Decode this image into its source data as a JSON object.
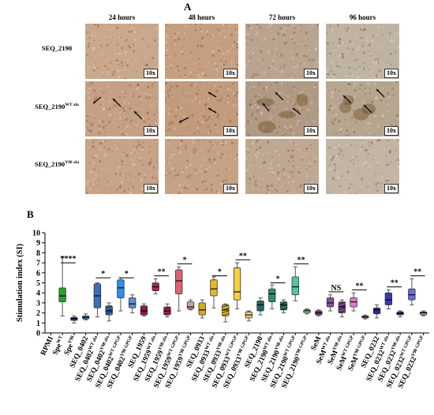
{
  "panel_a": {
    "label": "A",
    "columns": [
      "24 hours",
      "48 hours",
      "72 hours",
      "96 hours"
    ],
    "rows": [
      {
        "label": "SEQ_2190",
        "sup": ""
      },
      {
        "label": "SEQ_2190",
        "sup": "WT ala"
      },
      {
        "label": "SEQ_2190",
        "sup": "Y98 ala"
      }
    ],
    "magnification": "10x",
    "arrow_color": "#111111"
  },
  "panel_b": {
    "label": "B"
  },
  "chart_data": {
    "type": "box",
    "ylabel": "Stimulation index (SI)",
    "ylim": [
      0,
      10
    ],
    "yticks": [
      0,
      1,
      2,
      3,
      4,
      5,
      6,
      7,
      8,
      9,
      10
    ],
    "categories": [
      {
        "name": "RPMI",
        "sup": "",
        "color": "",
        "box": null
      },
      {
        "name": "Spe",
        "sup": "WT",
        "color": "#2ca02c",
        "box": {
          "min": 1.7,
          "q1": 3.1,
          "median": 3.7,
          "q3": 4.5,
          "max": 7.6
        }
      },
      {
        "name": "Spe",
        "sup": "Y98",
        "color": "#1f2f8a",
        "box": {
          "min": 1.0,
          "q1": 1.25,
          "median": 1.45,
          "q3": 1.55,
          "max": 1.7
        }
      },
      {
        "name": "SEQ_0402",
        "sup": "",
        "color": "#3b6fb6",
        "box": {
          "min": 1.3,
          "q1": 1.4,
          "median": 1.55,
          "q3": 1.7,
          "max": 1.9
        }
      },
      {
        "name": "SEQ_0402",
        "sup": "WT ala",
        "color": "#3b6fb6",
        "box": {
          "min": 1.6,
          "q1": 2.5,
          "median": 3.7,
          "q3": 4.9,
          "max": 5.0
        }
      },
      {
        "name": "SEQ_0402",
        "sup": "Y98 ala",
        "color": "#3b6fb6",
        "box": {
          "min": 1.2,
          "q1": 1.8,
          "median": 2.2,
          "q3": 2.7,
          "max": 3.0
        }
      },
      {
        "name": "SEQ_0402",
        "sup": "WT GPGP",
        "color": "#2f8fe8",
        "box": {
          "min": 2.2,
          "q1": 3.5,
          "median": 4.5,
          "q3": 5.3,
          "max": 5.5
        }
      },
      {
        "name": "SEQ_0402",
        "sup": "Y98 GPGP",
        "color": "#5b8fd6",
        "box": {
          "min": 2.0,
          "q1": 2.5,
          "median": 2.9,
          "q3": 3.5,
          "max": 3.8
        }
      },
      {
        "name": "SEQ_1959",
        "sup": "",
        "color": "#8a1f3a",
        "box": {
          "min": 1.7,
          "q1": 1.8,
          "median": 2.2,
          "q3": 2.7,
          "max": 2.9
        }
      },
      {
        "name": "SEQ_1959",
        "sup": "WT ala",
        "color": "#b0264b",
        "box": {
          "min": 3.9,
          "q1": 4.2,
          "median": 4.6,
          "q3": 5.0,
          "max": 5.4
        }
      },
      {
        "name": "SEQ_1959",
        "sup": "Y98 ala",
        "color": "#b0264b",
        "box": {
          "min": 1.6,
          "q1": 1.8,
          "median": 2.2,
          "q3": 2.6,
          "max": 2.9
        }
      },
      {
        "name": "SEQ_1959",
        "sup": "WT GPGP",
        "color": "#e06070",
        "box": {
          "min": 2.2,
          "q1": 3.9,
          "median": 5.2,
          "q3": 6.3,
          "max": 6.6
        }
      },
      {
        "name": "SEQ_1959",
        "sup": "Y98 GPGP",
        "color": "#c9a0a5",
        "box": {
          "min": 2.3,
          "q1": 2.4,
          "median": 2.6,
          "q3": 3.1,
          "max": 3.3
        }
      },
      {
        "name": "SEQ_0933",
        "sup": "",
        "color": "#d6a820",
        "box": {
          "min": 1.5,
          "q1": 1.8,
          "median": 2.3,
          "q3": 3.0,
          "max": 3.3
        }
      },
      {
        "name": "SEQ_0933",
        "sup": "WT ala",
        "color": "#e4b820",
        "box": {
          "min": 2.5,
          "q1": 3.7,
          "median": 4.4,
          "q3": 5.3,
          "max": 5.6
        }
      },
      {
        "name": "SEQ_0933",
        "sup": "Y98 ala",
        "color": "#e4b820",
        "box": {
          "min": 1.1,
          "q1": 1.7,
          "median": 2.3,
          "q3": 2.8,
          "max": 2.9
        }
      },
      {
        "name": "SEQ_0933",
        "sup": "WT GPGP",
        "color": "#f2d040",
        "box": {
          "min": 2.4,
          "q1": 3.3,
          "median": 4.1,
          "q3": 6.5,
          "max": 7.0
        }
      },
      {
        "name": "SEQ_0933",
        "sup": "Y98 GPGP",
        "color": "#ecd27a",
        "box": {
          "min": 1.2,
          "q1": 1.5,
          "median": 1.8,
          "q3": 2.1,
          "max": 2.2
        }
      },
      {
        "name": "SEQ_2190",
        "sup": "",
        "color": "#1f6a6a",
        "box": {
          "min": 1.8,
          "q1": 2.2,
          "median": 2.8,
          "q3": 3.2,
          "max": 3.5
        }
      },
      {
        "name": "SEQ_2190",
        "sup": "WT ala",
        "color": "#2e8b6e",
        "box": {
          "min": 2.4,
          "q1": 3.1,
          "median": 3.9,
          "q3": 4.4,
          "max": 4.8
        }
      },
      {
        "name": "SEQ_2190",
        "sup": "Y98 ala",
        "color": "#2e8b6e",
        "box": {
          "min": 2.0,
          "q1": 2.3,
          "median": 2.8,
          "q3": 3.1,
          "max": 3.3
        }
      },
      {
        "name": "SEQ_2190",
        "sup": "WT GPGP",
        "color": "#52c79a",
        "box": {
          "min": 3.2,
          "q1": 3.8,
          "median": 4.6,
          "q3": 5.6,
          "max": 6.6
        }
      },
      {
        "name": "SEQ_2190",
        "sup": "Y98 GPGP",
        "color": "#9fd9b8",
        "box": {
          "min": 1.9,
          "q1": 2.0,
          "median": 2.2,
          "q3": 2.3,
          "max": 2.4
        }
      },
      {
        "name": "SeM",
        "sup": "",
        "color": "#6a3d7a",
        "box": {
          "min": 1.7,
          "q1": 1.8,
          "median": 2.0,
          "q3": 2.2,
          "max": 2.3
        }
      },
      {
        "name": "SeM",
        "sup": "WT ala",
        "color": "#8a4f9e",
        "box": {
          "min": 2.2,
          "q1": 2.6,
          "median": 3.0,
          "q3": 3.5,
          "max": 3.8
        }
      },
      {
        "name": "SeM",
        "sup": "Y98 ala",
        "color": "#8a4f9e",
        "box": {
          "min": 1.6,
          "q1": 2.0,
          "median": 2.6,
          "q3": 3.1,
          "max": 3.3
        }
      },
      {
        "name": "SeM",
        "sup": "WT GPGP",
        "color": "#e07ad0",
        "box": {
          "min": 2.2,
          "q1": 2.6,
          "median": 3.1,
          "q3": 3.5,
          "max": 4.0
        }
      },
      {
        "name": "SeM",
        "sup": "Y98 GPGP",
        "color": "#d8a0d0",
        "box": {
          "min": 1.4,
          "q1": 1.5,
          "median": 1.6,
          "q3": 1.7,
          "max": 1.8
        }
      },
      {
        "name": "SEQ_0232",
        "sup": "",
        "color": "#2a2a8a",
        "box": {
          "min": 1.5,
          "q1": 1.9,
          "median": 2.3,
          "q3": 2.5,
          "max": 2.8
        }
      },
      {
        "name": "SEQ_0232",
        "sup": "WT ala",
        "color": "#3a3ab0",
        "box": {
          "min": 2.4,
          "q1": 2.8,
          "median": 3.3,
          "q3": 4.0,
          "max": 4.3
        }
      },
      {
        "name": "SEQ_0232",
        "sup": "Y98 ala",
        "color": "#3a3ab0",
        "box": {
          "min": 1.6,
          "q1": 1.8,
          "median": 1.95,
          "q3": 2.1,
          "max": 2.2
        }
      },
      {
        "name": "SEQ_0232",
        "sup": "WT GPGP",
        "color": "#6a6ae0",
        "box": {
          "min": 2.8,
          "q1": 3.3,
          "median": 3.8,
          "q3": 4.4,
          "max": 5.4
        }
      },
      {
        "name": "SEQ_0232",
        "sup": "Y98 GPGP",
        "color": "#9a9ae0",
        "box": {
          "min": 1.7,
          "q1": 1.8,
          "median": 2.0,
          "q3": 2.1,
          "max": 2.2
        }
      }
    ],
    "significance": [
      {
        "from": 1,
        "to": 2,
        "label": "****",
        "y": 7.0
      },
      {
        "from": 4,
        "to": 5,
        "label": "*",
        "y": 5.5
      },
      {
        "from": 6,
        "to": 7,
        "label": "*",
        "y": 5.5
      },
      {
        "from": 9,
        "to": 10,
        "label": "**",
        "y": 5.7
      },
      {
        "from": 11,
        "to": 12,
        "label": "*",
        "y": 6.9
      },
      {
        "from": 14,
        "to": 15,
        "label": "*",
        "y": 5.7
      },
      {
        "from": 16,
        "to": 17,
        "label": "**",
        "y": 7.3
      },
      {
        "from": 19,
        "to": 20,
        "label": "*",
        "y": 5.0
      },
      {
        "from": 21,
        "to": 22,
        "label": "**",
        "y": 6.9
      },
      {
        "from": 24,
        "to": 25,
        "label": "NS",
        "y": 4.1
      },
      {
        "from": 26,
        "to": 27,
        "label": "**",
        "y": 4.3
      },
      {
        "from": 29,
        "to": 30,
        "label": "**",
        "y": 4.6
      },
      {
        "from": 31,
        "to": 32,
        "label": "**",
        "y": 5.7
      }
    ]
  }
}
